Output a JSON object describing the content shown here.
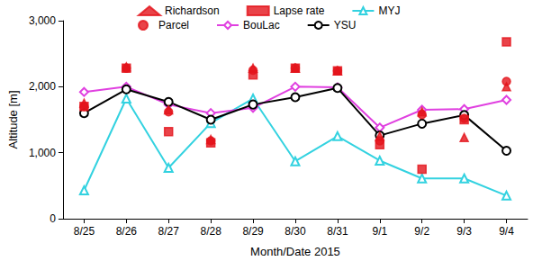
{
  "chart_data": {
    "type": "line",
    "x_label": "Month/Date 2015",
    "y_label": "Altitude [m]",
    "categories": [
      "8/25",
      "8/26",
      "8/27",
      "8/28",
      "8/29",
      "8/30",
      "8/31",
      "9/1",
      "9/2",
      "9/3",
      "9/4"
    ],
    "ylim": [
      0,
      3000
    ],
    "yticks": [
      0,
      1000,
      2000,
      3000
    ],
    "grid": false,
    "legend": "top",
    "series": [
      {
        "name": "Richardson",
        "type": "scatter",
        "color": "#e3141c",
        "marker": "triangle",
        "values": [
          1750,
          2300,
          1650,
          1200,
          2280,
          2280,
          2240,
          1250,
          1620,
          1230,
          2000
        ]
      },
      {
        "name": "Lapse rate",
        "type": "scatter",
        "color": "#e3141c",
        "marker": "rect",
        "values": [
          1700,
          2280,
          1320,
          1150,
          2180,
          2280,
          2240,
          1120,
          750,
          1500,
          2680
        ]
      },
      {
        "name": "MYJ",
        "type": "line",
        "color": "#33d2e0",
        "marker": "emptyTriangle",
        "line_style": "solid",
        "values": [
          430,
          1820,
          770,
          1450,
          1820,
          870,
          1250,
          880,
          610,
          610,
          350
        ]
      },
      {
        "name": "Parcel",
        "type": "scatter",
        "color": "#e3141c",
        "marker": "circle",
        "values": [
          1700,
          2280,
          1620,
          1180,
          2250,
          2280,
          2240,
          1180,
          1580,
          1520,
          2080
        ]
      },
      {
        "name": "BouLac",
        "type": "line",
        "color": "#e040e0",
        "marker": "emptyDiamond",
        "line_style": "solid",
        "values": [
          1920,
          2000,
          1730,
          1600,
          1680,
          2000,
          1990,
          1380,
          1650,
          1660,
          1800
        ]
      },
      {
        "name": "YSU",
        "type": "line",
        "color": "#000000",
        "marker": "emptyCircle",
        "line_style": "solid",
        "values": [
          1600,
          1960,
          1770,
          1500,
          1730,
          1840,
          1980,
          1260,
          1440,
          1570,
          1030
        ]
      }
    ]
  }
}
